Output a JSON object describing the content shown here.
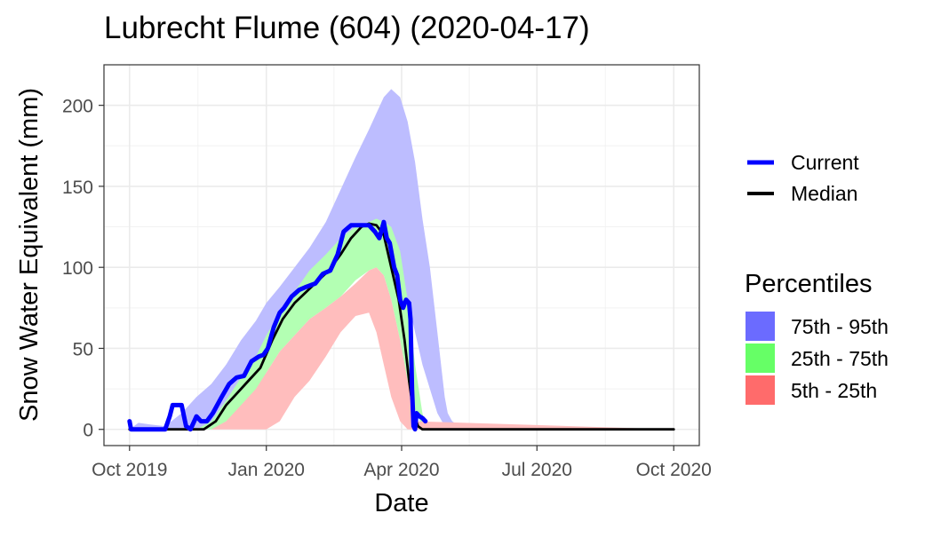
{
  "chart_data": {
    "type": "area",
    "title": "Lubrecht Flume (604) (2020-04-17)",
    "xlabel": "Date",
    "ylabel": "Snow Water Equivalent (mm)",
    "xlim": [
      "2019-10-01",
      "2020-10-01"
    ],
    "ylim": [
      -10,
      225
    ],
    "x_ticks": [
      {
        "date": "2019-10-01",
        "label": "Oct 2019"
      },
      {
        "date": "2020-01-01",
        "label": "Jan 2020"
      },
      {
        "date": "2020-04-01",
        "label": "Apr 2020"
      },
      {
        "date": "2020-07-01",
        "label": "Jul 2020"
      },
      {
        "date": "2020-10-01",
        "label": "Oct 2020"
      }
    ],
    "y_ticks": [
      0,
      50,
      100,
      150,
      200
    ],
    "grid": true,
    "legend_lines": [
      {
        "label": "Current",
        "color": "#0000ff"
      },
      {
        "label": "Median",
        "color": "#000000"
      }
    ],
    "legend_percentiles": {
      "title": "Percentiles",
      "items": [
        {
          "label": "75th - 95th",
          "color": "#6b6bff"
        },
        {
          "label": "25th - 75th",
          "color": "#66ff66"
        },
        {
          "label": "5th - 25th",
          "color": "#ff6b6b"
        }
      ]
    },
    "band_colors": {
      "p75_p95": "#bdbdff",
      "p25_p75": "#b3ffb3",
      "p5_p25": "#ffbdbd"
    },
    "bands": {
      "p75_p95": {
        "x": [
          "2019-10-01",
          "2019-10-07",
          "2019-10-15",
          "2019-10-25",
          "2019-11-05",
          "2019-11-15",
          "2019-11-25",
          "2019-12-05",
          "2019-12-15",
          "2019-12-25",
          "2020-01-01",
          "2020-01-10",
          "2020-01-20",
          "2020-01-30",
          "2020-02-10",
          "2020-02-20",
          "2020-03-01",
          "2020-03-10",
          "2020-03-20",
          "2020-03-25",
          "2020-03-31",
          "2020-04-05",
          "2020-04-10",
          "2020-04-15",
          "2020-04-20",
          "2020-04-25",
          "2020-04-30",
          "2020-05-02",
          "2020-05-05",
          "2020-05-10",
          "2020-05-15",
          "2020-10-01"
        ],
        "lower": [
          0,
          0,
          0,
          0,
          0,
          0,
          2,
          8,
          22,
          38,
          55,
          70,
          82,
          90,
          98,
          108,
          118,
          122,
          124,
          118,
          100,
          80,
          60,
          40,
          25,
          10,
          2,
          0,
          0,
          0,
          0,
          0
        ],
        "upper": [
          0,
          4,
          3,
          2,
          10,
          20,
          28,
          40,
          55,
          67,
          78,
          88,
          100,
          112,
          128,
          148,
          168,
          185,
          205,
          210,
          205,
          190,
          165,
          130,
          100,
          60,
          20,
          10,
          5,
          2,
          0,
          0
        ]
      },
      "p25_p75": {
        "x": [
          "2019-10-01",
          "2019-11-15",
          "2019-11-25",
          "2019-12-05",
          "2019-12-15",
          "2019-12-25",
          "2020-01-01",
          "2020-01-10",
          "2020-01-20",
          "2020-01-30",
          "2020-02-10",
          "2020-02-20",
          "2020-03-01",
          "2020-03-10",
          "2020-03-15",
          "2020-03-20",
          "2020-03-25",
          "2020-03-31",
          "2020-04-05",
          "2020-04-10",
          "2020-04-15",
          "2020-04-18",
          "2020-10-01"
        ],
        "lower": [
          0,
          0,
          0,
          2,
          10,
          22,
          35,
          48,
          58,
          68,
          75,
          82,
          92,
          98,
          100,
          95,
          80,
          55,
          30,
          12,
          2,
          0,
          0
        ],
        "upper": [
          0,
          0,
          5,
          18,
          32,
          45,
          58,
          72,
          85,
          98,
          108,
          118,
          125,
          128,
          130,
          128,
          125,
          110,
          80,
          40,
          10,
          0,
          0
        ]
      },
      "p5_p25": {
        "x": [
          "2019-10-01",
          "2019-11-25",
          "2019-12-05",
          "2019-12-15",
          "2019-12-25",
          "2020-01-01",
          "2020-01-10",
          "2020-01-20",
          "2020-01-30",
          "2020-02-10",
          "2020-02-20",
          "2020-03-01",
          "2020-03-10",
          "2020-03-15",
          "2020-03-20",
          "2020-03-25",
          "2020-03-31",
          "2020-04-05",
          "2020-04-10",
          "2020-10-01"
        ],
        "lower": [
          0,
          0,
          0,
          0,
          0,
          0,
          5,
          20,
          30,
          45,
          60,
          70,
          72,
          60,
          40,
          20,
          5,
          0,
          0,
          0
        ],
        "upper": [
          0,
          0,
          5,
          15,
          25,
          35,
          48,
          58,
          68,
          75,
          82,
          90,
          98,
          100,
          95,
          80,
          55,
          30,
          5,
          0
        ]
      }
    },
    "series": [
      {
        "name": "Current",
        "color": "#0000ff",
        "x": [
          "2019-10-01",
          "2019-10-02",
          "2019-10-03",
          "2019-10-25",
          "2019-10-28",
          "2019-10-30",
          "2019-11-05",
          "2019-11-08",
          "2019-11-11",
          "2019-11-15",
          "2019-11-18",
          "2019-11-22",
          "2019-11-26",
          "2019-12-02",
          "2019-12-07",
          "2019-12-12",
          "2019-12-17",
          "2019-12-22",
          "2019-12-27",
          "2019-12-30",
          "2020-01-02",
          "2020-01-06",
          "2020-01-10",
          "2020-01-13",
          "2020-01-18",
          "2020-01-23",
          "2020-01-28",
          "2020-02-03",
          "2020-02-08",
          "2020-02-13",
          "2020-02-18",
          "2020-02-22",
          "2020-02-27",
          "2020-03-01",
          "2020-03-05",
          "2020-03-10",
          "2020-03-14",
          "2020-03-17",
          "2020-03-20",
          "2020-03-22",
          "2020-03-24",
          "2020-03-27",
          "2020-03-29",
          "2020-03-31",
          "2020-04-02",
          "2020-04-04",
          "2020-04-06",
          "2020-04-07",
          "2020-04-08",
          "2020-04-09",
          "2020-04-10",
          "2020-04-11",
          "2020-04-13",
          "2020-04-15",
          "2020-04-17"
        ],
        "y": [
          5,
          0,
          0,
          0,
          8,
          15,
          15,
          2,
          0,
          8,
          5,
          5,
          10,
          20,
          28,
          32,
          33,
          42,
          45,
          46,
          50,
          63,
          72,
          75,
          82,
          86,
          88,
          90,
          96,
          98,
          108,
          122,
          126,
          126,
          126,
          126,
          122,
          118,
          128,
          118,
          115,
          100,
          95,
          80,
          75,
          80,
          78,
          68,
          25,
          2,
          0,
          10,
          8,
          7,
          5
        ]
      },
      {
        "name": "Median",
        "color": "#000000",
        "x": [
          "2019-10-01",
          "2019-11-20",
          "2019-11-28",
          "2019-12-05",
          "2019-12-12",
          "2019-12-20",
          "2019-12-28",
          "2020-01-05",
          "2020-01-12",
          "2020-01-20",
          "2020-01-28",
          "2020-02-05",
          "2020-02-12",
          "2020-02-20",
          "2020-02-27",
          "2020-03-05",
          "2020-03-10",
          "2020-03-15",
          "2020-03-20",
          "2020-03-25",
          "2020-03-30",
          "2020-04-03",
          "2020-04-06",
          "2020-04-09",
          "2020-04-12",
          "2020-04-15",
          "2020-10-01"
        ],
        "y": [
          0,
          0,
          5,
          15,
          22,
          30,
          38,
          55,
          68,
          78,
          85,
          92,
          98,
          108,
          118,
          125,
          127,
          126,
          120,
          100,
          80,
          55,
          30,
          10,
          2,
          0,
          0
        ]
      }
    ]
  }
}
